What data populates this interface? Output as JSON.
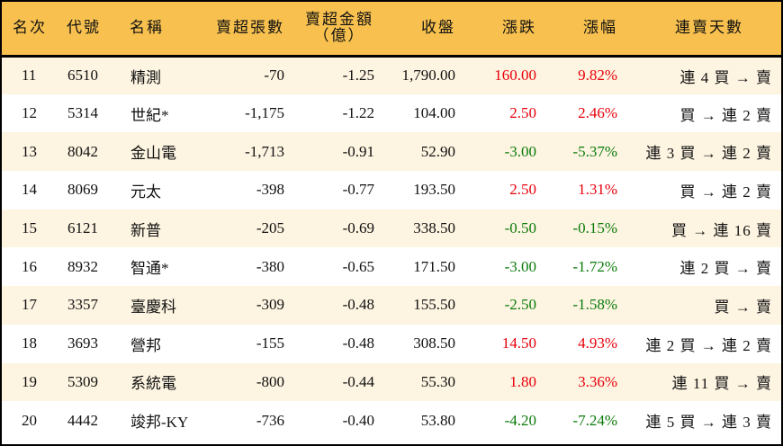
{
  "headers": {
    "rank": "名次",
    "code": "代號",
    "name": "名稱",
    "net_sell_lots": "賣超張數",
    "net_sell_amount": "賣超金額",
    "net_sell_amount_unit": "（億）",
    "close": "收盤",
    "change": "漲跌",
    "change_pct": "漲幅",
    "streak": "連賣天數"
  },
  "colors": {
    "header_bg": "#F8C14F",
    "stripe_bg": "#FDF4E1",
    "up": "#E8000B",
    "down": "#0A7B0A"
  },
  "rows": [
    {
      "rank": "11",
      "code": "6510",
      "name": "精測",
      "lots": "-70",
      "amount": "-1.25",
      "close": "1,790.00",
      "change": "160.00",
      "pct": "9.82%",
      "dir": "up",
      "streak": "連 4 買 → 賣"
    },
    {
      "rank": "12",
      "code": "5314",
      "name": "世紀*",
      "lots": "-1,175",
      "amount": "-1.22",
      "close": "104.00",
      "change": "2.50",
      "pct": "2.46%",
      "dir": "up",
      "streak": "買 → 連 2 賣"
    },
    {
      "rank": "13",
      "code": "8042",
      "name": "金山電",
      "lots": "-1,713",
      "amount": "-0.91",
      "close": "52.90",
      "change": "-3.00",
      "pct": "-5.37%",
      "dir": "down",
      "streak": "連 3 買 → 連 2 賣"
    },
    {
      "rank": "14",
      "code": "8069",
      "name": "元太",
      "lots": "-398",
      "amount": "-0.77",
      "close": "193.50",
      "change": "2.50",
      "pct": "1.31%",
      "dir": "up",
      "streak": "買 → 連 2 賣"
    },
    {
      "rank": "15",
      "code": "6121",
      "name": "新普",
      "lots": "-205",
      "amount": "-0.69",
      "close": "338.50",
      "change": "-0.50",
      "pct": "-0.15%",
      "dir": "down",
      "streak": "買 → 連 16 賣"
    },
    {
      "rank": "16",
      "code": "8932",
      "name": "智通*",
      "lots": "-380",
      "amount": "-0.65",
      "close": "171.50",
      "change": "-3.00",
      "pct": "-1.72%",
      "dir": "down",
      "streak": "連 2 買 → 賣"
    },
    {
      "rank": "17",
      "code": "3357",
      "name": "臺慶科",
      "lots": "-309",
      "amount": "-0.48",
      "close": "155.50",
      "change": "-2.50",
      "pct": "-1.58%",
      "dir": "down",
      "streak": "買 → 賣"
    },
    {
      "rank": "18",
      "code": "3693",
      "name": "營邦",
      "lots": "-155",
      "amount": "-0.48",
      "close": "308.50",
      "change": "14.50",
      "pct": "4.93%",
      "dir": "up",
      "streak": "連 2 買 → 連 2 賣"
    },
    {
      "rank": "19",
      "code": "5309",
      "name": "系統電",
      "lots": "-800",
      "amount": "-0.44",
      "close": "55.30",
      "change": "1.80",
      "pct": "3.36%",
      "dir": "up",
      "streak": "連 11 買 → 賣"
    },
    {
      "rank": "20",
      "code": "4442",
      "name": "竣邦-KY",
      "lots": "-736",
      "amount": "-0.40",
      "close": "53.80",
      "change": "-4.20",
      "pct": "-7.24%",
      "dir": "down",
      "streak": "連 5 買 → 連 3 賣"
    }
  ]
}
